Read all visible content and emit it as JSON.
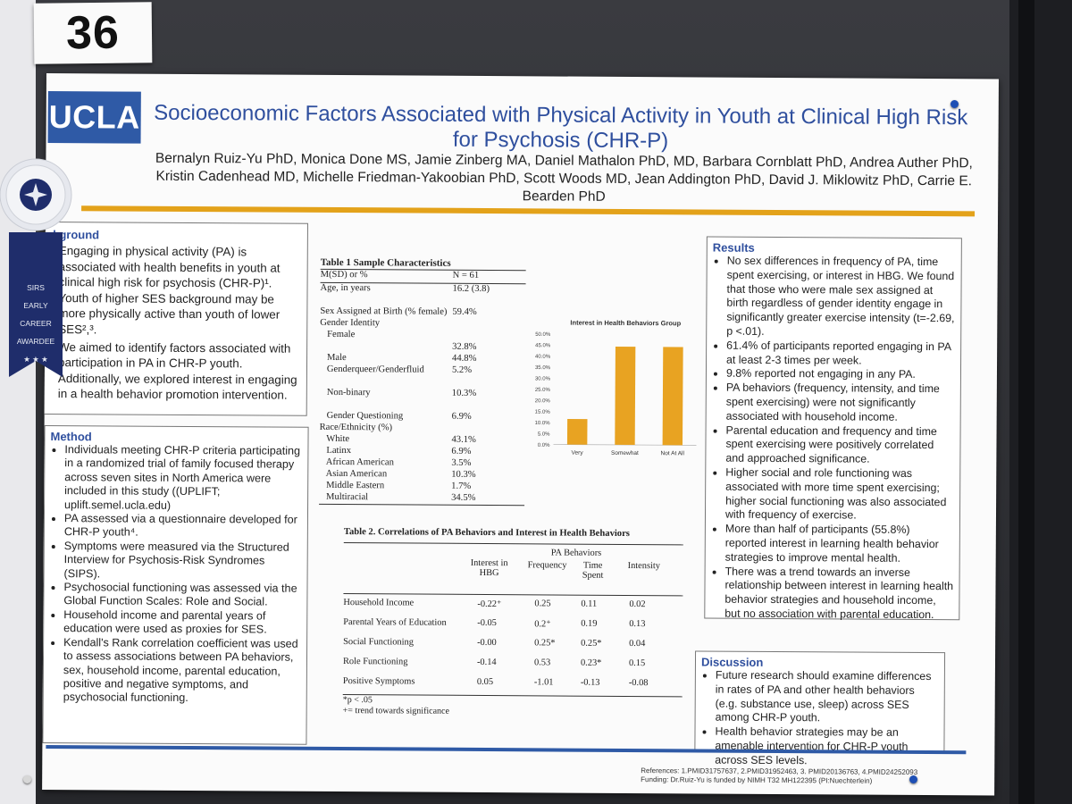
{
  "card_number": "36",
  "poster": {
    "logo": "UCLA",
    "title": "Socioeconomic Factors Associated with Physical Activity in Youth at Clinical High Risk for Psychosis (CHR-P)",
    "authors_line1": "Bernalyn Ruiz-Yu PhD, Monica Done MS, Jamie Zinberg MA, Daniel Mathalon PhD, MD, Barbara Cornblatt PhD, Andrea Auther PhD,",
    "authors_line2": "Kristin Cadenhead MD, Michelle Friedman-Yakoobian PhD, Scott Woods MD, Jean Addington PhD, David J. Miklowitz PhD, Carrie E.",
    "authors_line3": "Bearden PhD"
  },
  "ribbon": {
    "lines": [
      "SIRS",
      "EARLY",
      "CAREER",
      "AWARDEE"
    ],
    "stars": "★ ★ ★",
    "rosette_color": "#eef0f4",
    "ribbon_color": "#1f2d6b"
  },
  "background": {
    "heading": "ckground",
    "paragraphs": [
      "Engaging in physical activity (PA) is associated with health benefits in youth at clinical high risk for psychosis (CHR-P)¹. Youth of higher SES background may be more physically active than youth of lower SES²,³.",
      "We aimed to identify factors associated with participation in PA in CHR-P youth. Additionally, we explored interest in engaging in a health behavior promotion intervention."
    ]
  },
  "method": {
    "heading": "Method",
    "items": [
      "Individuals meeting CHR-P criteria participating in a randomized trial of family focused therapy across seven sites in North America were included in this study ((UPLIFT; uplift.semel.ucla.edu)",
      "PA assessed via a questionnaire developed for CHR-P youth⁴.",
      "Symptoms were measured via the Structured Interview for Psychosis-Risk Syndromes (SIPS).",
      "Psychosocial functioning was assessed via the Global Function Scales: Role and Social.",
      "Household income and parental years of education were used as proxies for SES.",
      "Kendall's Rank correlation coefficient was used to assess associations between PA behaviors, sex, household income, parental education, positive and negative symptoms, and psychosocial functioning."
    ]
  },
  "table1": {
    "title": "Table 1 Sample Characteristics",
    "header_left": "M(SD) or %",
    "header_right": "N = 61",
    "rows": [
      {
        "label": "Age, in years",
        "value": "16.2 (3.8)"
      },
      {
        "label": "",
        "value": ""
      },
      {
        "label": "Sex Assigned at Birth (% female)",
        "value": "59.4%"
      },
      {
        "label": "Gender Identity",
        "value": ""
      },
      {
        "label": "   Female",
        "value": ""
      },
      {
        "label": "",
        "value": "32.8%"
      },
      {
        "label": "   Male",
        "value": "44.8%"
      },
      {
        "label": "   Genderqueer/Genderfluid",
        "value": "5.2%"
      },
      {
        "label": "",
        "value": ""
      },
      {
        "label": "   Non-binary",
        "value": "10.3%"
      },
      {
        "label": "",
        "value": ""
      },
      {
        "label": "   Gender Questioning",
        "value": "6.9%"
      },
      {
        "label": "Race/Ethnicity (%)",
        "value": ""
      },
      {
        "label": "   White",
        "value": "43.1%"
      },
      {
        "label": "   Latinx",
        "value": "6.9%"
      },
      {
        "label": "   African American",
        "value": "3.5%"
      },
      {
        "label": "   Asian American",
        "value": "10.3%"
      },
      {
        "label": "   Middle Eastern",
        "value": "1.7%"
      },
      {
        "label": "   Multiracial",
        "value": "34.5%"
      }
    ]
  },
  "chart_data": {
    "type": "bar",
    "title": "Interest in Health Behaviors Group",
    "categories": [
      "Very",
      "Somewhat",
      "Not At All"
    ],
    "values": [
      11.5,
      44.3,
      44.3
    ],
    "ylim": [
      0,
      50
    ],
    "yticks": [
      "0.0%",
      "5.0%",
      "10.0%",
      "15.0%",
      "20.0%",
      "25.0%",
      "30.0%",
      "35.0%",
      "40.0%",
      "45.0%",
      "50.0%"
    ],
    "bar_color": "#e8a322",
    "grid": false,
    "legend": "none"
  },
  "table2": {
    "title": "Table 2. Correlations of PA Behaviors and Interest in Health Behaviors",
    "group_header": "PA Behaviors",
    "col_interest": "Interest in HBG",
    "col_frequency": "Frequency",
    "col_time": "Time Spent",
    "col_intensity": "Intensity",
    "rows": [
      {
        "label": "Household Income",
        "interest": "-0.22⁺",
        "frequency": "0.25",
        "time": "0.11",
        "intensity": "0.02"
      },
      {
        "label": "Parental Years of Education",
        "interest": "-0.05",
        "frequency": "0.2⁺",
        "time": "0.19",
        "intensity": "0.13"
      },
      {
        "label": "Social Functioning",
        "interest": "-0.00",
        "frequency": "0.25*",
        "time": "0.25*",
        "intensity": "0.04"
      },
      {
        "label": "Role Functioning",
        "interest": "-0.14",
        "frequency": "0.53",
        "time": "0.23*",
        "intensity": "0.15"
      },
      {
        "label": "Positive Symptoms",
        "interest": "0.05",
        "frequency": "-1.01",
        "time": "-0.13",
        "intensity": "-0.08"
      }
    ],
    "note1": "*p < .05",
    "note2": "+= trend towards significance"
  },
  "results": {
    "heading": "Results",
    "items": [
      "No sex differences in frequency of PA, time spent exercising, or interest in HBG. We found that those who were male sex assigned at birth regardless of gender identity engage in significantly greater exercise intensity (t=-2.69, p <.01).",
      "61.4% of participants reported engaging in PA at least 2-3 times per week.",
      "9.8% reported not engaging in any PA.",
      "PA behaviors (frequency, intensity, and time spent exercising) were not significantly associated with household income.",
      "Parental education and frequency and time spent exercising were positively correlated and approached significance.",
      "Higher social and role functioning was associated with more time spent exercising; higher social functioning was also associated with frequency of exercise.",
      "More than half of participants (55.8%) reported interest in learning health behavior strategies to improve mental health.",
      "There was a trend towards an inverse relationship between interest in learning health behavior strategies and household income, but no association with parental education."
    ]
  },
  "discussion": {
    "heading": "Discussion",
    "items": [
      "Future research should examine differences in rates of PA and other health behaviors (e.g. substance use, sleep) across SES among CHR-P youth.",
      "Health behavior strategies may be an amenable intervention for CHR-P youth across SES levels."
    ]
  },
  "footer": {
    "references": "References: 1.PMID31757637, 2.PMID31952463, 3. PMID20136763, 4.PMID24252093",
    "funding": "Funding:  Dr.Ruiz-Yu is funded by NIMH T32 MH122395 (PI:Nuechterlein)"
  },
  "colors": {
    "title_blue": "#2f4f9e",
    "gold": "#e3a21a",
    "logo_blue": "#2f5aa6",
    "pin_blue": "#1d4fb5"
  }
}
